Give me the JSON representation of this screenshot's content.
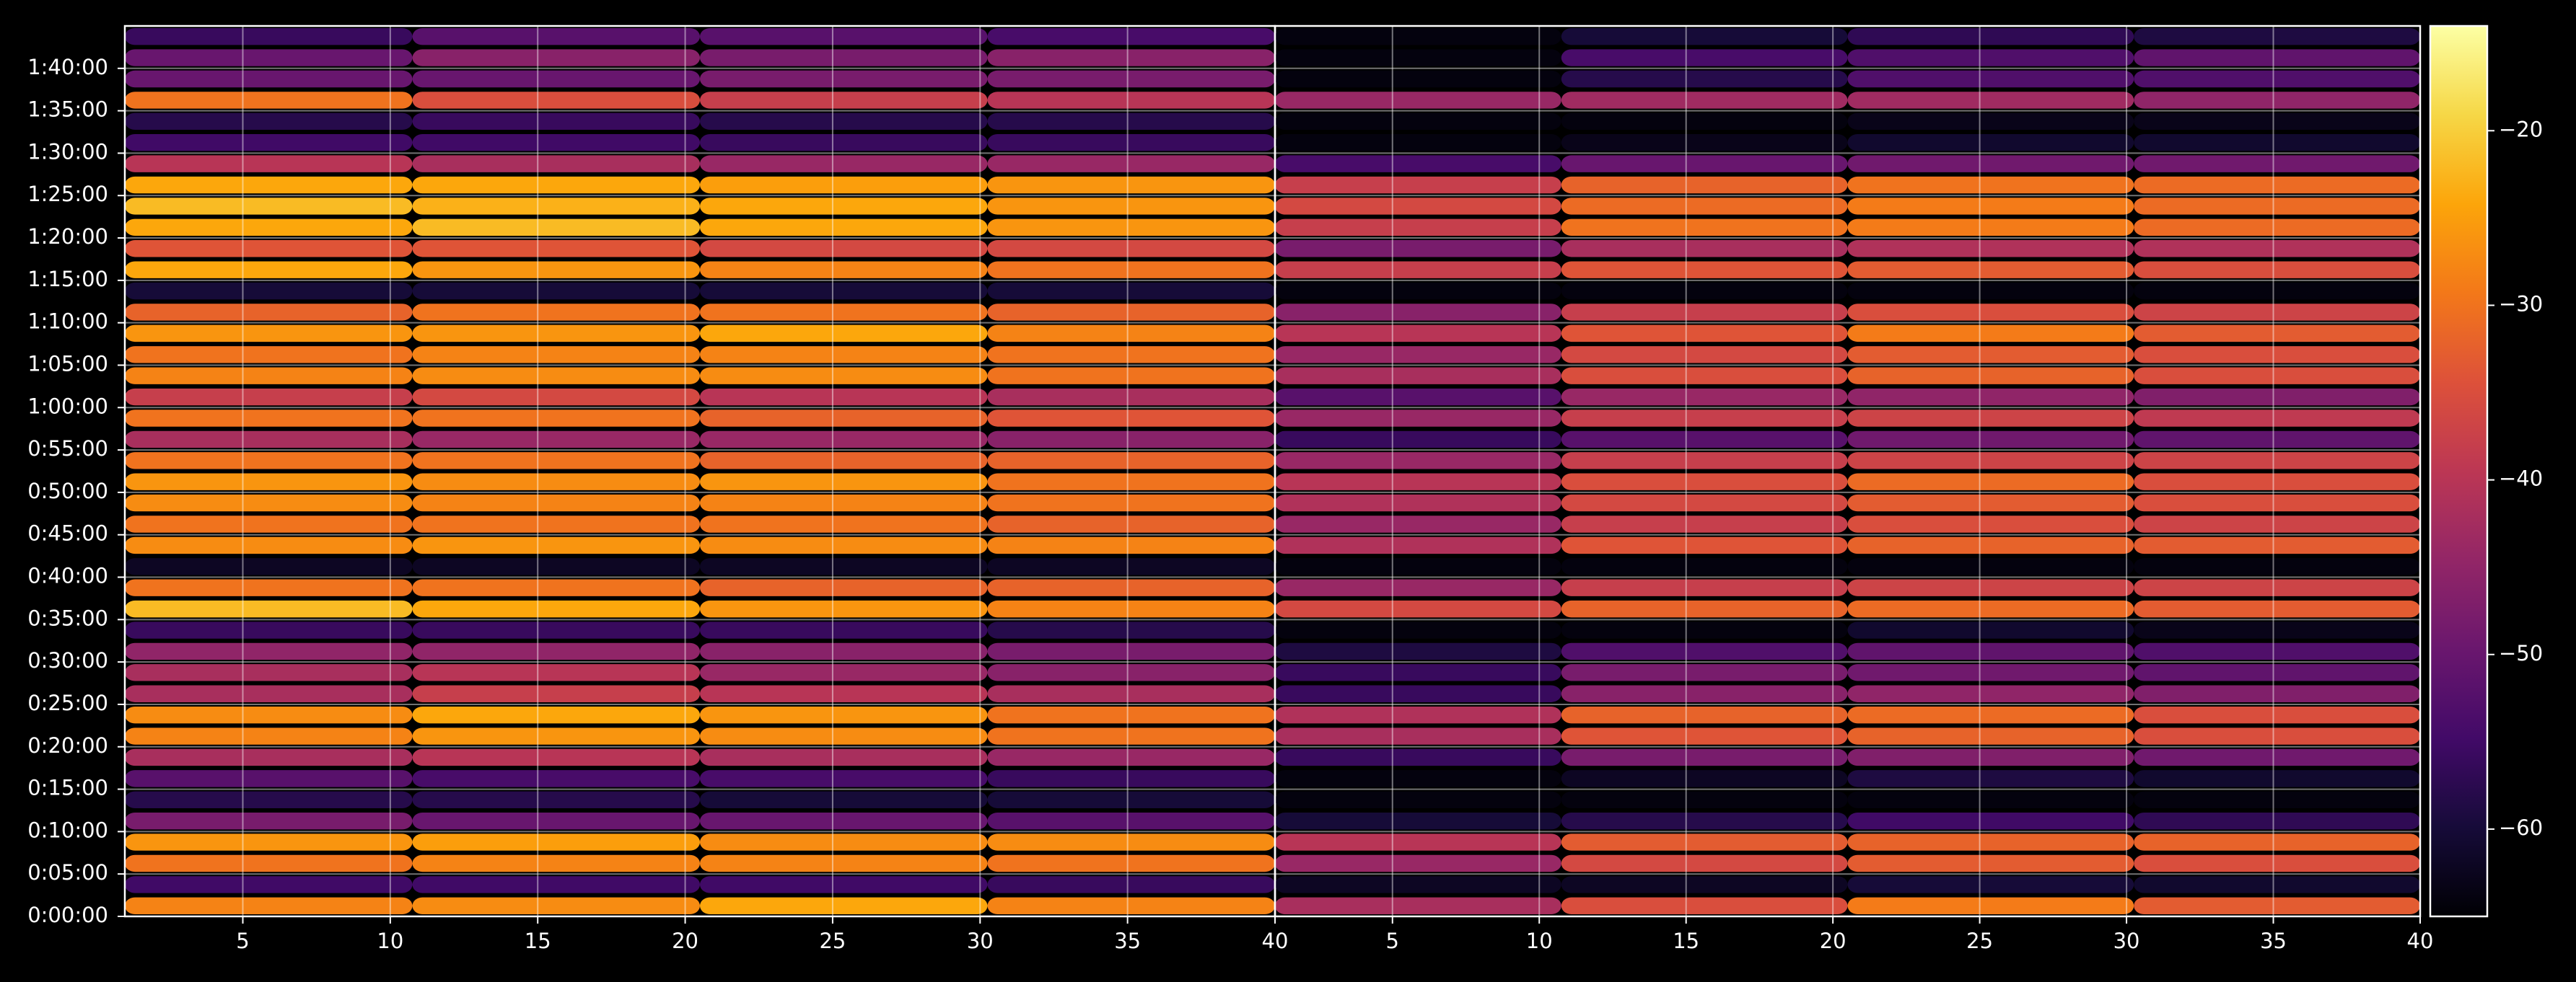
{
  "chart_data": {
    "type": "heatmap",
    "grid": true,
    "colormap": "inferno",
    "ylim": [
      0,
      105
    ],
    "yticks": [
      {
        "value": 0,
        "label": "0:00:00"
      },
      {
        "value": 5,
        "label": "0:05:00"
      },
      {
        "value": 10,
        "label": "0:10:00"
      },
      {
        "value": 15,
        "label": "0:15:00"
      },
      {
        "value": 20,
        "label": "0:20:00"
      },
      {
        "value": 25,
        "label": "0:25:00"
      },
      {
        "value": 30,
        "label": "0:30:00"
      },
      {
        "value": 35,
        "label": "0:35:00"
      },
      {
        "value": 40,
        "label": "0:40:00"
      },
      {
        "value": 45,
        "label": "0:45:00"
      },
      {
        "value": 50,
        "label": "0:50:00"
      },
      {
        "value": 55,
        "label": "0:55:00"
      },
      {
        "value": 60,
        "label": "1:00:00"
      },
      {
        "value": 65,
        "label": "1:05:00"
      },
      {
        "value": 70,
        "label": "1:10:00"
      },
      {
        "value": 75,
        "label": "1:15:00"
      },
      {
        "value": 80,
        "label": "1:20:00"
      },
      {
        "value": 85,
        "label": "1:25:00"
      },
      {
        "value": 90,
        "label": "1:30:00"
      },
      {
        "value": 95,
        "label": "1:35:00"
      },
      {
        "value": 100,
        "label": "1:40:00"
      }
    ],
    "y": [
      0,
      2.5,
      5,
      7.5,
      10,
      12.5,
      15,
      17.5,
      20,
      22.5,
      25,
      27.5,
      30,
      32.5,
      35,
      37.5,
      40,
      42.5,
      45,
      47.5,
      50,
      52.5,
      55,
      57.5,
      60,
      62.5,
      65,
      67.5,
      70,
      72.5,
      75,
      77.5,
      80,
      82.5,
      85,
      87.5,
      90,
      92.5,
      95,
      97.5,
      100,
      102.5
    ],
    "colorbar": {
      "clim": [
        -65,
        -14
      ],
      "ticks": [
        {
          "value": -60,
          "label": "−60"
        },
        {
          "value": -50,
          "label": "−50"
        },
        {
          "value": -40,
          "label": "−40"
        },
        {
          "value": -30,
          "label": "−30"
        },
        {
          "value": -20,
          "label": "−20"
        }
      ]
    },
    "panels": [
      {
        "xlim": [
          1,
          40
        ],
        "xticks": [
          5,
          10,
          15,
          20,
          25,
          30,
          35,
          40
        ],
        "x_edges": [
          1,
          10.75,
          20.5,
          30.25,
          40
        ],
        "values": [
          [
            -28,
            -27,
            -24,
            -28
          ],
          [
            -55,
            -55,
            -55,
            -56
          ],
          [
            -30,
            -28,
            -28,
            -30
          ],
          [
            -26,
            -25,
            -27,
            -27
          ],
          [
            -48,
            -50,
            -50,
            -52
          ],
          [
            -58,
            -58,
            -60,
            -60
          ],
          [
            -52,
            -54,
            -54,
            -56
          ],
          [
            -42,
            -40,
            -42,
            -44
          ],
          [
            -28,
            -26,
            -27,
            -30
          ],
          [
            -27,
            -24,
            -26,
            -30
          ],
          [
            -42,
            -38,
            -40,
            -42
          ],
          [
            -42,
            -40,
            -44,
            -46
          ],
          [
            -45,
            -45,
            -46,
            -48
          ],
          [
            -56,
            -56,
            -56,
            -58
          ],
          [
            -22,
            -24,
            -26,
            -28
          ],
          [
            -30,
            -30,
            -32,
            -32
          ],
          [
            -62,
            -62,
            -62,
            -62
          ],
          [
            -27,
            -26,
            -27,
            -28
          ],
          [
            -30,
            -30,
            -30,
            -32
          ],
          [
            -27,
            -28,
            -28,
            -30
          ],
          [
            -26,
            -27,
            -26,
            -30
          ],
          [
            -30,
            -30,
            -32,
            -32
          ],
          [
            -42,
            -44,
            -44,
            -46
          ],
          [
            -30,
            -30,
            -32,
            -34
          ],
          [
            -38,
            -36,
            -40,
            -42
          ],
          [
            -28,
            -27,
            -27,
            -30
          ],
          [
            -30,
            -28,
            -28,
            -30
          ],
          [
            -26,
            -26,
            -24,
            -28
          ],
          [
            -32,
            -30,
            -30,
            -32
          ],
          [
            -60,
            -60,
            -60,
            -60
          ],
          [
            -24,
            -26,
            -28,
            -30
          ],
          [
            -34,
            -34,
            -36,
            -36
          ],
          [
            -24,
            -22,
            -24,
            -26
          ],
          [
            -22,
            -23,
            -24,
            -26
          ],
          [
            -24,
            -24,
            -25,
            -26
          ],
          [
            -40,
            -42,
            -44,
            -44
          ],
          [
            -55,
            -55,
            -56,
            -56
          ],
          [
            -58,
            -56,
            -58,
            -58
          ],
          [
            -30,
            -35,
            -38,
            -40
          ],
          [
            -50,
            -50,
            -48,
            -48
          ],
          [
            -50,
            -46,
            -48,
            -46
          ],
          [
            -56,
            -52,
            -52,
            -54
          ]
        ]
      },
      {
        "xlim": [
          1,
          40
        ],
        "xticks": [
          5,
          10,
          15,
          20,
          25,
          30,
          35,
          40
        ],
        "x_edges": [
          1,
          10.75,
          20.5,
          30.25,
          40
        ],
        "values": [
          [
            -42,
            -35,
            -29,
            -33
          ],
          [
            -62,
            -62,
            -60,
            -61
          ],
          [
            -44,
            -36,
            -33,
            -35
          ],
          [
            -40,
            -33,
            -32,
            -32
          ],
          [
            -60,
            -58,
            -55,
            -57
          ],
          [
            -64,
            -64,
            -64,
            -64
          ],
          [
            -64,
            -62,
            -59,
            -61
          ],
          [
            -56,
            -48,
            -47,
            -49
          ],
          [
            -42,
            -34,
            -32,
            -35
          ],
          [
            -41,
            -32,
            -31,
            -35
          ],
          [
            -56,
            -46,
            -45,
            -47
          ],
          [
            -56,
            -48,
            -49,
            -51
          ],
          [
            -59,
            -53,
            -51,
            -53
          ],
          [
            -64,
            -64,
            -61,
            -63
          ],
          [
            -36,
            -32,
            -31,
            -33
          ],
          [
            -44,
            -38,
            -37,
            -37
          ],
          [
            -64,
            -64,
            -64,
            -64
          ],
          [
            -41,
            -34,
            -32,
            -33
          ],
          [
            -44,
            -38,
            -35,
            -37
          ],
          [
            -41,
            -36,
            -33,
            -35
          ],
          [
            -40,
            -35,
            -31,
            -35
          ],
          [
            -44,
            -38,
            -37,
            -37
          ],
          [
            -56,
            -52,
            -49,
            -51
          ],
          [
            -44,
            -38,
            -37,
            -39
          ],
          [
            -52,
            -44,
            -45,
            -47
          ],
          [
            -42,
            -35,
            -32,
            -35
          ],
          [
            -44,
            -36,
            -33,
            -35
          ],
          [
            -40,
            -34,
            -29,
            -33
          ],
          [
            -46,
            -38,
            -35,
            -37
          ],
          [
            -64,
            -64,
            -64,
            -64
          ],
          [
            -38,
            -34,
            -33,
            -35
          ],
          [
            -48,
            -42,
            -41,
            -41
          ],
          [
            -38,
            -30,
            -29,
            -31
          ],
          [
            -36,
            -31,
            -29,
            -31
          ],
          [
            -38,
            -32,
            -30,
            -31
          ],
          [
            -54,
            -50,
            -49,
            -49
          ],
          [
            -64,
            -63,
            -61,
            -61
          ],
          [
            -64,
            -64,
            -63,
            -63
          ],
          [
            -44,
            -43,
            -43,
            -45
          ],
          [
            -64,
            -58,
            -53,
            -53
          ],
          [
            -64,
            -54,
            -53,
            -51
          ],
          [
            -64,
            -60,
            -57,
            -59
          ]
        ]
      }
    ]
  }
}
